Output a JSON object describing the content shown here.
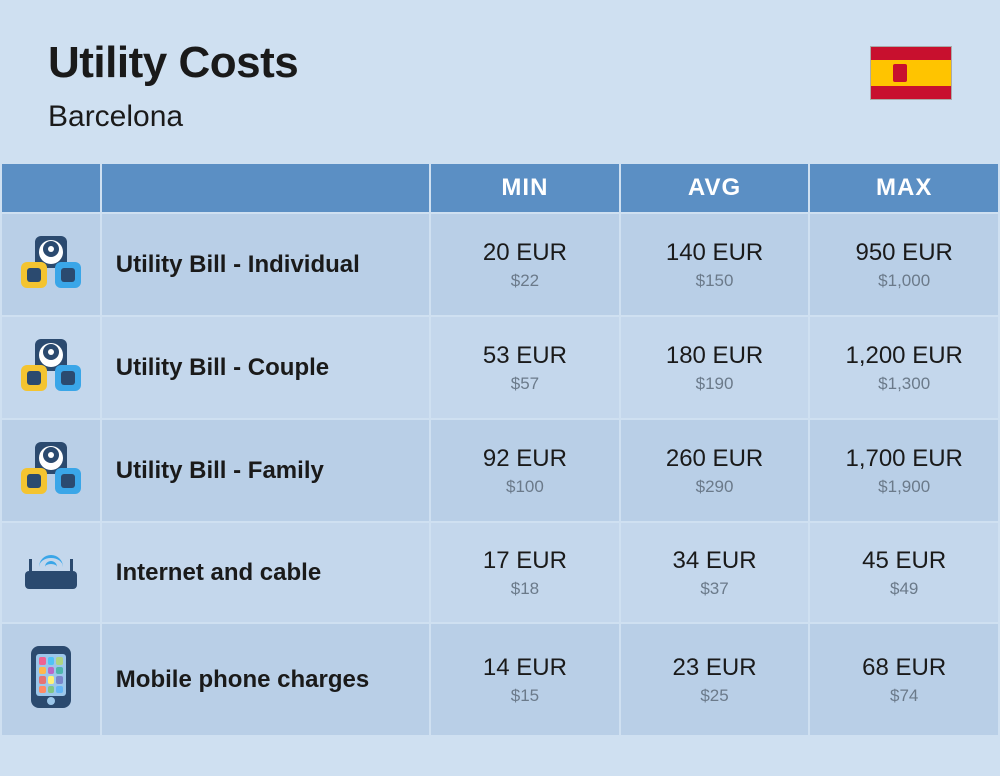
{
  "header": {
    "title": "Utility Costs",
    "subtitle": "Barcelona",
    "flag_country": "Spain",
    "flag_colors": {
      "red": "#c8102e",
      "yellow": "#ffc400"
    }
  },
  "columns": {
    "min": "MIN",
    "avg": "AVG",
    "max": "MAX"
  },
  "colors": {
    "page_bg": "#cfe0f1",
    "header_bg": "#5b8fc4",
    "header_text": "#ffffff",
    "row_bg": "#b9cfe7",
    "row_alt_bg": "#c4d7ec",
    "text_primary": "#1a1a1a",
    "text_secondary": "#6b7a8a"
  },
  "rows": [
    {
      "icon": "utility",
      "label": "Utility Bill - Individual",
      "min": {
        "primary": "20 EUR",
        "secondary": "$22"
      },
      "avg": {
        "primary": "140 EUR",
        "secondary": "$150"
      },
      "max": {
        "primary": "950 EUR",
        "secondary": "$1,000"
      }
    },
    {
      "icon": "utility",
      "label": "Utility Bill - Couple",
      "min": {
        "primary": "53 EUR",
        "secondary": "$57"
      },
      "avg": {
        "primary": "180 EUR",
        "secondary": "$190"
      },
      "max": {
        "primary": "1,200 EUR",
        "secondary": "$1,300"
      }
    },
    {
      "icon": "utility",
      "label": "Utility Bill - Family",
      "min": {
        "primary": "92 EUR",
        "secondary": "$100"
      },
      "avg": {
        "primary": "260 EUR",
        "secondary": "$290"
      },
      "max": {
        "primary": "1,700 EUR",
        "secondary": "$1,900"
      }
    },
    {
      "icon": "router",
      "label": "Internet and cable",
      "min": {
        "primary": "17 EUR",
        "secondary": "$18"
      },
      "avg": {
        "primary": "34 EUR",
        "secondary": "$37"
      },
      "max": {
        "primary": "45 EUR",
        "secondary": "$49"
      }
    },
    {
      "icon": "phone",
      "label": "Mobile phone charges",
      "min": {
        "primary": "14 EUR",
        "secondary": "$15"
      },
      "avg": {
        "primary": "23 EUR",
        "secondary": "$25"
      },
      "max": {
        "primary": "68 EUR",
        "secondary": "$74"
      }
    }
  ],
  "phone_app_colors": [
    "#f06292",
    "#4fc3f7",
    "#aed581",
    "#ffb74d",
    "#ba68c8",
    "#4db6ac",
    "#e57373",
    "#fff176",
    "#7986cb",
    "#ff8a65",
    "#81c784",
    "#64b5f6"
  ]
}
